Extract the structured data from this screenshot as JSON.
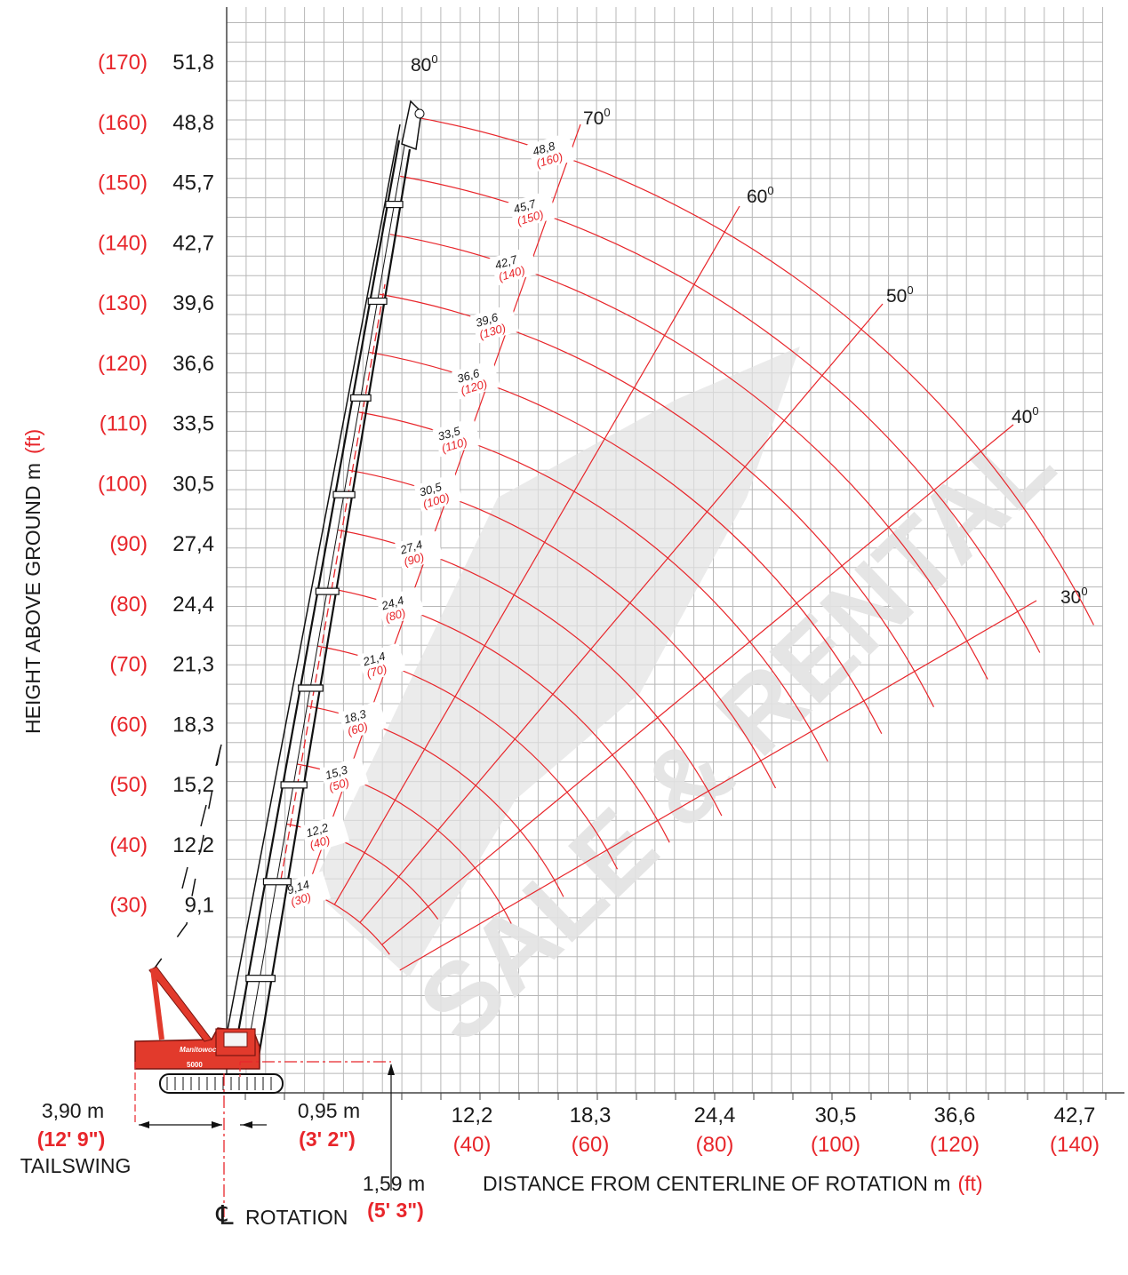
{
  "height_axis": {
    "title_text": "HEIGHT ABOVE GROUND m",
    "title_unit": "(ft)",
    "ticks": [
      {
        "m": "51,8",
        "ft": "(170)",
        "value_m": 51.8
      },
      {
        "m": "48,8",
        "ft": "(160)",
        "value_m": 48.8
      },
      {
        "m": "45,7",
        "ft": "(150)",
        "value_m": 45.7
      },
      {
        "m": "42,7",
        "ft": "(140)",
        "value_m": 42.7
      },
      {
        "m": "39,6",
        "ft": "(130)",
        "value_m": 39.6
      },
      {
        "m": "36,6",
        "ft": "(120)",
        "value_m": 36.6
      },
      {
        "m": "33,5",
        "ft": "(110)",
        "value_m": 33.5
      },
      {
        "m": "30,5",
        "ft": "(100)",
        "value_m": 30.5
      },
      {
        "m": "27,4",
        "ft": "(90)",
        "value_m": 27.4
      },
      {
        "m": "24,4",
        "ft": "(80)",
        "value_m": 24.4
      },
      {
        "m": "21,3",
        "ft": "(70)",
        "value_m": 21.3
      },
      {
        "m": "18,3",
        "ft": "(60)",
        "value_m": 18.3
      },
      {
        "m": "15,2",
        "ft": "(50)",
        "value_m": 15.2
      },
      {
        "m": "12,2",
        "ft": "(40)",
        "value_m": 12.2
      },
      {
        "m": "9,1",
        "ft": "(30)",
        "value_m": 9.1
      }
    ]
  },
  "distance_axis": {
    "title_text": "DISTANCE FROM CENTERLINE OF ROTATION m",
    "title_unit": "(ft)",
    "ticks": [
      {
        "m": "12,2",
        "ft": "(40)",
        "value_m": 12.2
      },
      {
        "m": "18,3",
        "ft": "(60)",
        "value_m": 18.3
      },
      {
        "m": "24,4",
        "ft": "(80)",
        "value_m": 24.4
      },
      {
        "m": "30,5",
        "ft": "(100)",
        "value_m": 30.5
      },
      {
        "m": "36,6",
        "ft": "(120)",
        "value_m": 36.6
      },
      {
        "m": "42,7",
        "ft": "(140)",
        "value_m": 42.7
      }
    ]
  },
  "boom_angles": [
    {
      "label": "80",
      "deg": 80
    },
    {
      "label": "70",
      "deg": 70
    },
    {
      "label": "60",
      "deg": 60
    },
    {
      "label": "50",
      "deg": 50
    },
    {
      "label": "40",
      "deg": 40
    },
    {
      "label": "30",
      "deg": 30
    }
  ],
  "boom_lengths": [
    {
      "m": "9,14",
      "ft": "(30)",
      "length_m": 9.14
    },
    {
      "m": "12,2",
      "ft": "(40)",
      "length_m": 12.2
    },
    {
      "m": "15,3",
      "ft": "(50)",
      "length_m": 15.3
    },
    {
      "m": "18,3",
      "ft": "(60)",
      "length_m": 18.3
    },
    {
      "m": "21,4",
      "ft": "(70)",
      "length_m": 21.4
    },
    {
      "m": "24,4",
      "ft": "(80)",
      "length_m": 24.4
    },
    {
      "m": "27,4",
      "ft": "(90)",
      "length_m": 27.4
    },
    {
      "m": "30,5",
      "ft": "(100)",
      "length_m": 30.5
    },
    {
      "m": "33,5",
      "ft": "(110)",
      "length_m": 33.5
    },
    {
      "m": "36,6",
      "ft": "(120)",
      "length_m": 36.6
    },
    {
      "m": "39,6",
      "ft": "(130)",
      "length_m": 39.6
    },
    {
      "m": "42,7",
      "ft": "(140)",
      "length_m": 42.7
    },
    {
      "m": "45,7",
      "ft": "(150)",
      "length_m": 45.7
    },
    {
      "m": "48,8",
      "ft": "(160)",
      "length_m": 48.8
    }
  ],
  "dimensions": {
    "tailswing_m": "3,90 m",
    "tailswing_ft": "(12' 9\")",
    "tailswing_label": "TAILSWING",
    "pin_offset_m": "0,95 m",
    "pin_offset_ft": "(3' 2\")",
    "pin_height_m": "1,59 m",
    "pin_height_ft": "(5' 3\")",
    "rotation_symbol": "℄",
    "rotation_label": "ROTATION"
  },
  "crane": {
    "brand": "Manitowoc",
    "model": "5000"
  },
  "watermark": {
    "text": "SALE & RENTAL"
  },
  "colors": {
    "grid": "#b7b7b7",
    "red": "#e8262b",
    "black": "#1a1a1a",
    "watermark": "#e3e3e3",
    "crane_body": "#e23a2c"
  }
}
